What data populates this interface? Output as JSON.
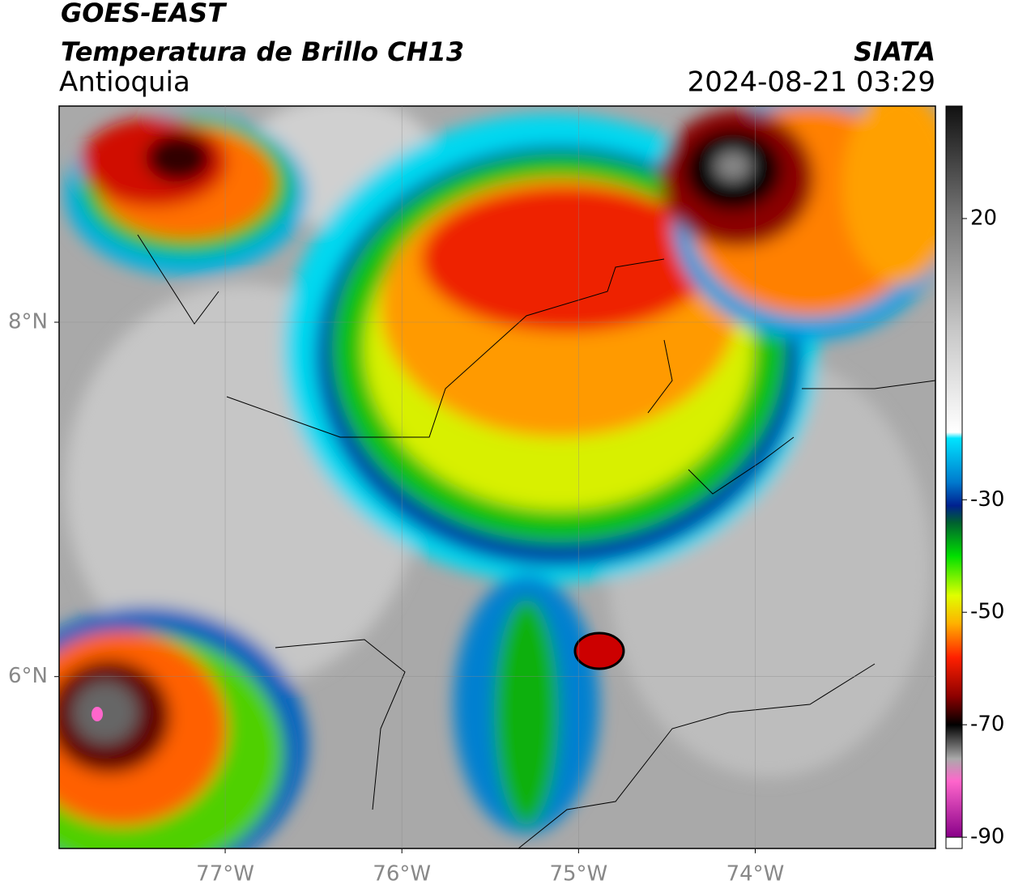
{
  "header": {
    "satellite": "GOES-EAST",
    "product": "Temperatura de Brillo CH13",
    "region": "Antioquia",
    "source": "SIATA",
    "datetime": "2024-08-21 03:29"
  },
  "map": {
    "xlim": [
      -77.94,
      -72.98
    ],
    "ylim": [
      5.03,
      9.22
    ],
    "xticks": [
      {
        "value": -77,
        "label": "77°W"
      },
      {
        "value": -76,
        "label": "76°W"
      },
      {
        "value": -75,
        "label": "75°W"
      },
      {
        "value": -74,
        "label": "74°W"
      }
    ],
    "yticks": [
      {
        "value": 8,
        "label": "8°N"
      },
      {
        "value": 6,
        "label": "6°N"
      }
    ],
    "grid": true
  },
  "colorbar": {
    "lim": [
      -92,
      40
    ],
    "ticks": [
      20,
      -30,
      -50,
      -70,
      -90
    ],
    "stops": [
      {
        "value": 40,
        "color": "#111111"
      },
      {
        "value": 20,
        "color": "#777777"
      },
      {
        "value": 0,
        "color": "#c8c8c8"
      },
      {
        "value": -18,
        "color": "#ffffff"
      },
      {
        "value": -19,
        "color": "#00e5ff"
      },
      {
        "value": -27,
        "color": "#0077cc"
      },
      {
        "value": -31,
        "color": "#00208f"
      },
      {
        "value": -34,
        "color": "#006030"
      },
      {
        "value": -40,
        "color": "#00e000"
      },
      {
        "value": -47,
        "color": "#e0ff00"
      },
      {
        "value": -52,
        "color": "#ffb000"
      },
      {
        "value": -58,
        "color": "#ff2000"
      },
      {
        "value": -65,
        "color": "#8b0000"
      },
      {
        "value": -70,
        "color": "#000000"
      },
      {
        "value": -76,
        "color": "#aaaaaa"
      },
      {
        "value": -80,
        "color": "#ff66cc"
      },
      {
        "value": -90,
        "color": "#880088"
      }
    ]
  }
}
